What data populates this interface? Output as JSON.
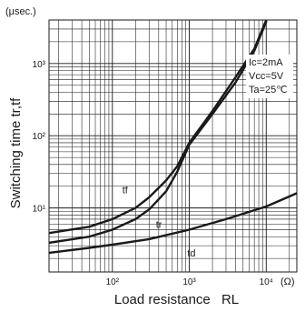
{
  "chart_data": {
    "type": "line",
    "xlabel": "Load resistance",
    "xlabel_symbol": "RL",
    "ylabel": "Switching time tr,tf",
    "x_unit": "(Ω)",
    "y_unit": "(μsec.)",
    "x_scale": "log",
    "y_scale": "log",
    "xlim": [
      15,
      25000
    ],
    "ylim": [
      1.3,
      4000
    ],
    "grid": true,
    "x_major_ticks": [
      {
        "value": 100,
        "label": "10²"
      },
      {
        "value": 1000,
        "label": "10³"
      },
      {
        "value": 10000,
        "label": "10⁴"
      }
    ],
    "y_major_ticks": [
      {
        "value": 10,
        "label": "10¹"
      },
      {
        "value": 100,
        "label": "10²"
      },
      {
        "value": 1000,
        "label": "10³"
      }
    ],
    "conditions": [
      "Ic=2mA",
      "Vcc=5V",
      "Ta=25℃"
    ],
    "series": [
      {
        "name": "tf",
        "points": [
          [
            15,
            4.5
          ],
          [
            50,
            5.5
          ],
          [
            100,
            7
          ],
          [
            200,
            10
          ],
          [
            300,
            14
          ],
          [
            500,
            24
          ],
          [
            700,
            38
          ],
          [
            1000,
            80
          ],
          [
            2000,
            220
          ],
          [
            4000,
            650
          ],
          [
            7000,
            1600
          ],
          [
            10000,
            4000
          ]
        ]
      },
      {
        "name": "tr",
        "points": [
          [
            15,
            3.3
          ],
          [
            50,
            4
          ],
          [
            100,
            5
          ],
          [
            200,
            7
          ],
          [
            300,
            9.5
          ],
          [
            500,
            17
          ],
          [
            700,
            32
          ],
          [
            1000,
            75
          ],
          [
            2000,
            200
          ],
          [
            4000,
            550
          ],
          [
            7000,
            1500
          ],
          [
            10000,
            3800
          ]
        ]
      },
      {
        "name": "td",
        "points": [
          [
            15,
            2.4
          ],
          [
            50,
            2.8
          ],
          [
            100,
            3.1
          ],
          [
            300,
            3.7
          ],
          [
            1000,
            5
          ],
          [
            3000,
            7
          ],
          [
            10000,
            10.5
          ],
          [
            25000,
            16
          ]
        ]
      }
    ]
  }
}
